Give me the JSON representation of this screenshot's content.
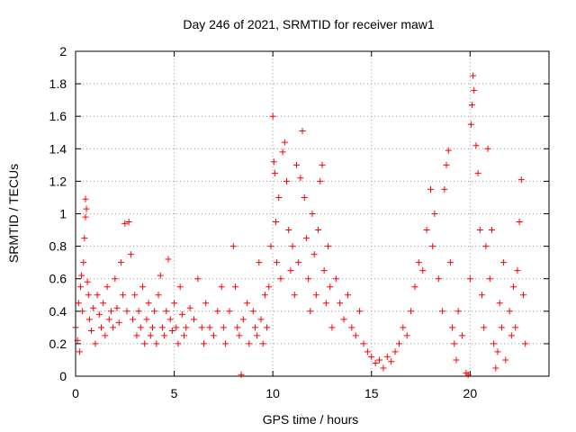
{
  "chart_data": {
    "type": "scatter",
    "title": "Day 246 of 2021, SRMTID for receiver maw1",
    "xlabel": "GPS time / hours",
    "ylabel": "SRMTID / TECUs",
    "xlim": [
      0,
      24
    ],
    "ylim": [
      0,
      2
    ],
    "x_ticks": [
      0,
      5,
      10,
      15,
      20
    ],
    "x_tick_labels": [
      "0",
      "5",
      "10",
      "15",
      "20"
    ],
    "y_ticks": [
      0,
      0.2,
      0.4,
      0.6,
      0.8,
      1,
      1.2,
      1.4,
      1.6,
      1.8,
      2
    ],
    "y_tick_labels": [
      "0",
      "0.2",
      "0.4",
      "0.6",
      "0.8",
      "1",
      "1.2",
      "1.4",
      "1.6",
      "1.8",
      "2"
    ],
    "grid": true,
    "marker": "plus",
    "color": "#ff0000",
    "series": [
      {
        "name": "SRMTID",
        "points": [
          [
            0.0,
            0.3
          ],
          [
            0.1,
            0.22
          ],
          [
            0.15,
            0.45
          ],
          [
            0.2,
            0.15
          ],
          [
            0.25,
            0.55
          ],
          [
            0.3,
            0.62
          ],
          [
            0.35,
            0.4
          ],
          [
            0.4,
            0.7
          ],
          [
            0.45,
            0.85
          ],
          [
            0.5,
            1.09
          ],
          [
            0.5,
            0.98
          ],
          [
            0.55,
            1.03
          ],
          [
            0.6,
            0.58
          ],
          [
            0.65,
            0.5
          ],
          [
            0.7,
            0.35
          ],
          [
            0.8,
            0.28
          ],
          [
            0.9,
            0.42
          ],
          [
            1.0,
            0.2
          ],
          [
            1.1,
            0.5
          ],
          [
            1.2,
            0.38
          ],
          [
            1.3,
            0.3
          ],
          [
            1.4,
            0.45
          ],
          [
            1.5,
            0.25
          ],
          [
            1.6,
            0.55
          ],
          [
            1.7,
            0.35
          ],
          [
            1.8,
            0.4
          ],
          [
            1.9,
            0.3
          ],
          [
            2.0,
            0.6
          ],
          [
            2.1,
            0.42
          ],
          [
            2.2,
            0.33
          ],
          [
            2.3,
            0.7
          ],
          [
            2.4,
            0.5
          ],
          [
            2.5,
            0.94
          ],
          [
            2.6,
            0.4
          ],
          [
            2.7,
            0.95
          ],
          [
            2.8,
            0.75
          ],
          [
            2.9,
            0.35
          ],
          [
            3.0,
            0.5
          ],
          [
            3.1,
            0.25
          ],
          [
            3.2,
            0.4
          ],
          [
            3.3,
            0.3
          ],
          [
            3.4,
            0.55
          ],
          [
            3.5,
            0.2
          ],
          [
            3.6,
            0.35
          ],
          [
            3.7,
            0.45
          ],
          [
            3.8,
            0.25
          ],
          [
            3.9,
            0.3
          ],
          [
            4.0,
            0.4
          ],
          [
            4.1,
            0.2
          ],
          [
            4.2,
            0.5
          ],
          [
            4.3,
            0.62
          ],
          [
            4.4,
            0.3
          ],
          [
            4.5,
            0.25
          ],
          [
            4.6,
            0.4
          ],
          [
            4.7,
            0.72
          ],
          [
            4.8,
            0.35
          ],
          [
            4.9,
            0.28
          ],
          [
            5.0,
            0.45
          ],
          [
            5.1,
            0.3
          ],
          [
            5.2,
            0.2
          ],
          [
            5.3,
            0.55
          ],
          [
            5.4,
            0.38
          ],
          [
            5.5,
            0.25
          ],
          [
            5.6,
            0.3
          ],
          [
            5.8,
            0.42
          ],
          [
            6.0,
            0.35
          ],
          [
            6.2,
            0.6
          ],
          [
            6.4,
            0.3
          ],
          [
            6.5,
            0.2
          ],
          [
            6.6,
            0.45
          ],
          [
            6.8,
            0.3
          ],
          [
            7.0,
            0.25
          ],
          [
            7.2,
            0.4
          ],
          [
            7.4,
            0.55
          ],
          [
            7.5,
            0.3
          ],
          [
            7.6,
            0.2
          ],
          [
            7.8,
            0.4
          ],
          [
            8.0,
            0.8
          ],
          [
            8.1,
            0.55
          ],
          [
            8.2,
            0.3
          ],
          [
            8.3,
            0.25
          ],
          [
            8.4,
            0.01
          ],
          [
            8.5,
            0.35
          ],
          [
            8.7,
            0.45
          ],
          [
            8.8,
            0.2
          ],
          [
            9.0,
            0.4
          ],
          [
            9.1,
            0.3
          ],
          [
            9.2,
            0.25
          ],
          [
            9.3,
            0.7
          ],
          [
            9.4,
            0.35
          ],
          [
            9.5,
            0.2
          ],
          [
            9.6,
            0.5
          ],
          [
            9.7,
            0.3
          ],
          [
            9.8,
            0.55
          ],
          [
            9.9,
            0.8
          ],
          [
            10.0,
            1.6
          ],
          [
            10.05,
            1.32
          ],
          [
            10.1,
            1.25
          ],
          [
            10.15,
            0.95
          ],
          [
            10.2,
            0.7
          ],
          [
            10.3,
            1.1
          ],
          [
            10.4,
            0.6
          ],
          [
            10.5,
            1.38
          ],
          [
            10.6,
            1.44
          ],
          [
            10.7,
            1.2
          ],
          [
            10.8,
            0.9
          ],
          [
            10.9,
            0.65
          ],
          [
            11.0,
            0.8
          ],
          [
            11.1,
            0.5
          ],
          [
            11.2,
            1.3
          ],
          [
            11.3,
            0.7
          ],
          [
            11.4,
            1.22
          ],
          [
            11.5,
            1.51
          ],
          [
            11.6,
            1.1
          ],
          [
            11.7,
            0.85
          ],
          [
            11.8,
            0.6
          ],
          [
            11.9,
            0.4
          ],
          [
            12.0,
            1.0
          ],
          [
            12.1,
            0.75
          ],
          [
            12.2,
            0.5
          ],
          [
            12.3,
            0.9
          ],
          [
            12.4,
            1.2
          ],
          [
            12.5,
            1.3
          ],
          [
            12.6,
            0.65
          ],
          [
            12.7,
            0.45
          ],
          [
            12.8,
            0.8
          ],
          [
            12.9,
            0.55
          ],
          [
            13.0,
            0.3
          ],
          [
            13.2,
            0.6
          ],
          [
            13.4,
            0.45
          ],
          [
            13.6,
            0.35
          ],
          [
            13.8,
            0.5
          ],
          [
            14.0,
            0.3
          ],
          [
            14.2,
            0.25
          ],
          [
            14.4,
            0.4
          ],
          [
            14.6,
            0.2
          ],
          [
            14.8,
            0.15
          ],
          [
            15.0,
            0.12
          ],
          [
            15.2,
            0.08
          ],
          [
            15.4,
            0.1
          ],
          [
            15.6,
            0.05
          ],
          [
            15.8,
            0.12
          ],
          [
            16.0,
            0.09
          ],
          [
            16.2,
            0.15
          ],
          [
            16.4,
            0.2
          ],
          [
            16.6,
            0.3
          ],
          [
            16.8,
            0.25
          ],
          [
            17.0,
            0.4
          ],
          [
            17.2,
            0.55
          ],
          [
            17.4,
            0.7
          ],
          [
            17.6,
            0.65
          ],
          [
            17.8,
            0.9
          ],
          [
            18.0,
            1.15
          ],
          [
            18.1,
            0.8
          ],
          [
            18.2,
            1.0
          ],
          [
            18.4,
            0.6
          ],
          [
            18.6,
            0.4
          ],
          [
            18.7,
            1.15
          ],
          [
            18.8,
            1.3
          ],
          [
            18.9,
            1.39
          ],
          [
            19.0,
            0.7
          ],
          [
            19.1,
            0.3
          ],
          [
            19.2,
            0.2
          ],
          [
            19.3,
            0.1
          ],
          [
            19.4,
            0.4
          ],
          [
            19.6,
            0.25
          ],
          [
            19.8,
            0.02
          ],
          [
            19.9,
            0.01
          ],
          [
            20.0,
            0.6
          ],
          [
            20.05,
            1.55
          ],
          [
            20.1,
            1.67
          ],
          [
            20.15,
            1.85
          ],
          [
            20.2,
            1.76
          ],
          [
            20.3,
            1.42
          ],
          [
            20.4,
            1.25
          ],
          [
            20.5,
            0.9
          ],
          [
            20.6,
            0.5
          ],
          [
            20.7,
            0.3
          ],
          [
            20.8,
            0.8
          ],
          [
            20.9,
            1.4
          ],
          [
            21.0,
            0.6
          ],
          [
            21.1,
            0.9
          ],
          [
            21.2,
            0.2
          ],
          [
            21.3,
            0.05
          ],
          [
            21.4,
            0.15
          ],
          [
            21.5,
            0.45
          ],
          [
            21.6,
            0.3
          ],
          [
            21.7,
            0.7
          ],
          [
            21.8,
            0.1
          ],
          [
            22.0,
            0.4
          ],
          [
            22.1,
            0.25
          ],
          [
            22.2,
            0.55
          ],
          [
            22.3,
            0.3
          ],
          [
            22.4,
            0.65
          ],
          [
            22.5,
            0.95
          ],
          [
            22.6,
            1.21
          ],
          [
            22.7,
            0.5
          ],
          [
            22.8,
            0.2
          ]
        ]
      }
    ]
  }
}
